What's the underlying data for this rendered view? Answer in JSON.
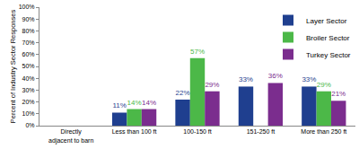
{
  "chart_data": {
    "type": "bar",
    "y_label": "Percent of Industry Sector Responses",
    "categories": [
      "Directly adjacent to barn",
      "Less than 100 ft",
      "100-150 ft",
      "151-250 ft",
      "More than 250 ft"
    ],
    "series": [
      {
        "name": "Layer Sector",
        "color": "#1f3f8f",
        "values": [
          null,
          11,
          22,
          33,
          33
        ],
        "value_labels": [
          null,
          "11%",
          "22%",
          "33%",
          "33%"
        ]
      },
      {
        "name": "Broiler Sector",
        "color": "#4cb848",
        "values": [
          null,
          14,
          57,
          null,
          29
        ],
        "value_labels": [
          null,
          "14%",
          "57%",
          null,
          "29%"
        ]
      },
      {
        "name": "Turkey Sector",
        "color": "#7b2d8e",
        "values": [
          null,
          14,
          29,
          36,
          21
        ],
        "value_labels": [
          null,
          "14%",
          "29%",
          "36%",
          "21%"
        ]
      }
    ],
    "ylim": [
      0,
      100
    ],
    "yticks": [
      {
        "value": 0,
        "label": "0%"
      },
      {
        "value": 10,
        "label": "10%"
      },
      {
        "value": 20,
        "label": "20%"
      },
      {
        "value": 30,
        "label": "30%"
      },
      {
        "value": 40,
        "label": "40%"
      },
      {
        "value": 50,
        "label": "50%"
      },
      {
        "value": 60,
        "label": "60%"
      },
      {
        "value": 70,
        "label": "70%"
      },
      {
        "value": 80,
        "label": "80%"
      },
      {
        "value": 90,
        "label": "90%"
      },
      {
        "value": 100,
        "label": "100%"
      }
    ],
    "grid": false,
    "legend": "top-right",
    "data_labels": true
  }
}
